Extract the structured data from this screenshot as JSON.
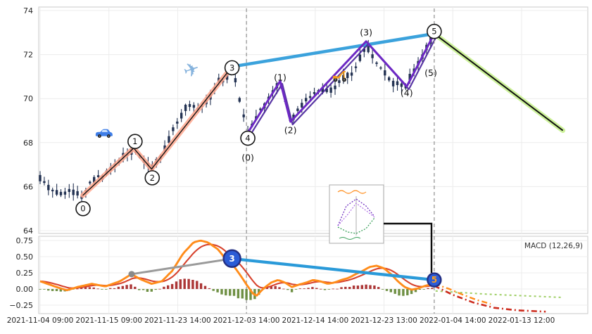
{
  "colors": {
    "candle": "#243353",
    "impulse": "#ffa78e",
    "trend_blue": "#2a9ad9",
    "subwave_purple": "#6d28c4",
    "subwave_purple2": "#47209a",
    "forecast_green": "#cdf29a",
    "macd_line": "#ff8c1a",
    "signal_line": "#d7432e",
    "hist_pos": "#a32020",
    "hist_neg": "#5f8430",
    "marker_blue": "#2b5cd6",
    "gray_line": "#9a9a9a",
    "projection_red": "#cc2b1d",
    "projection_green": "#9fcf66"
  },
  "chart_data": {
    "type": "candlestick",
    "description": "Price candlestick chart with Elliott wave annotations (top panel) and MACD indicator (bottom panel)",
    "x_tick_labels": [
      "2021-11-04 09:00",
      "2021-11-15 09:00",
      "2021-11-23 14:00",
      "2021-12-03 14:00",
      "2021-12-14 14:00",
      "2021-12-23 13:00",
      "2022-01-04 14:00",
      "2022-01-13 12:00"
    ],
    "price_axis": {
      "ticks": [
        74,
        72,
        70,
        68,
        66,
        64
      ],
      "range": [
        63.8,
        74.4
      ],
      "grid": true
    },
    "macd_axis": {
      "title": "MACD (12,26,9)",
      "ticks": [
        {
          "label": "0.75",
          "v": 0.75
        },
        {
          "label": "0.50",
          "v": 0.5
        },
        {
          "label": "0.25",
          "v": 0.25
        },
        {
          "label": "0.00",
          "v": 0
        },
        {
          "label": "−0.25",
          "v": -0.25
        }
      ],
      "range": [
        -0.38,
        0.82
      ]
    },
    "candles": {
      "count": 96,
      "t_step": 0.0604
    },
    "price_waypoints": [
      [
        0,
        66.35
      ],
      [
        0.12,
        65.95
      ],
      [
        0.3,
        65.7
      ],
      [
        0.45,
        65.85
      ],
      [
        0.62,
        65.55
      ],
      [
        0.75,
        66.3
      ],
      [
        0.9,
        66.45
      ],
      [
        1.05,
        66.8
      ],
      [
        1.2,
        67.3
      ],
      [
        1.36,
        67.75
      ],
      [
        1.5,
        67.2
      ],
      [
        1.62,
        66.8
      ],
      [
        1.8,
        67.6
      ],
      [
        2.0,
        69.0
      ],
      [
        2.15,
        69.7
      ],
      [
        2.3,
        69.5
      ],
      [
        2.45,
        70.0
      ],
      [
        2.6,
        70.9
      ],
      [
        2.7,
        70.8
      ],
      [
        2.79,
        71.45
      ],
      [
        2.88,
        70.2
      ],
      [
        3.02,
        68.5
      ],
      [
        3.15,
        69.2
      ],
      [
        3.3,
        69.9
      ],
      [
        3.49,
        70.8
      ],
      [
        3.58,
        69.6
      ],
      [
        3.64,
        69.0
      ],
      [
        3.8,
        69.7
      ],
      [
        3.95,
        70.1
      ],
      [
        4.1,
        70.4
      ],
      [
        4.25,
        70.3
      ],
      [
        4.4,
        70.9
      ],
      [
        4.55,
        71.2
      ],
      [
        4.74,
        72.4
      ],
      [
        4.85,
        71.8
      ],
      [
        5.0,
        71.2
      ],
      [
        5.15,
        70.7
      ],
      [
        5.33,
        70.6
      ],
      [
        5.45,
        71.4
      ],
      [
        5.6,
        72.2
      ],
      [
        5.73,
        73.0
      ]
    ],
    "macd_waypoints": [
      [
        0,
        0.12
      ],
      [
        0.24,
        0.03
      ],
      [
        0.39,
        -0.02
      ],
      [
        0.54,
        0.03
      ],
      [
        0.75,
        0.08
      ],
      [
        0.95,
        0.04
      ],
      [
        1.16,
        0.12
      ],
      [
        1.33,
        0.23
      ],
      [
        1.46,
        0.15
      ],
      [
        1.62,
        0.08
      ],
      [
        1.77,
        0.12
      ],
      [
        1.92,
        0.28
      ],
      [
        2.08,
        0.55
      ],
      [
        2.23,
        0.72
      ],
      [
        2.33,
        0.75
      ],
      [
        2.44,
        0.72
      ],
      [
        2.59,
        0.61
      ],
      [
        2.69,
        0.47
      ],
      [
        2.79,
        0.39
      ],
      [
        2.9,
        0.23
      ],
      [
        3.0,
        0.07
      ],
      [
        3.1,
        -0.08
      ],
      [
        3.15,
        -0.1
      ],
      [
        3.25,
        0.01
      ],
      [
        3.36,
        0.1
      ],
      [
        3.46,
        0.14
      ],
      [
        3.56,
        0.1
      ],
      [
        3.66,
        0.03
      ],
      [
        3.77,
        0.07
      ],
      [
        3.87,
        0.1
      ],
      [
        3.97,
        0.14
      ],
      [
        4.07,
        0.12
      ],
      [
        4.18,
        0.08
      ],
      [
        4.28,
        0.1
      ],
      [
        4.38,
        0.14
      ],
      [
        4.48,
        0.17
      ],
      [
        4.59,
        0.23
      ],
      [
        4.69,
        0.28
      ],
      [
        4.79,
        0.34
      ],
      [
        4.89,
        0.36
      ],
      [
        5.0,
        0.32
      ],
      [
        5.1,
        0.23
      ],
      [
        5.2,
        0.12
      ],
      [
        5.3,
        0.03
      ],
      [
        5.4,
        -0.01
      ],
      [
        5.5,
        0.01
      ],
      [
        5.6,
        0.05
      ],
      [
        5.73,
        0.08
      ]
    ],
    "elliott": {
      "impulse_polyline": [
        [
          0.62,
          65.6
        ],
        [
          1.36,
          67.75
        ],
        [
          1.62,
          66.8
        ],
        [
          2.79,
          71.45
        ]
      ],
      "blue_trend_price": [
        [
          2.79,
          71.45
        ],
        [
          5.73,
          72.95
        ]
      ],
      "subwave_polyline": [
        [
          3.02,
          68.45
        ],
        [
          3.49,
          70.8
        ],
        [
          3.64,
          68.95
        ],
        [
          4.74,
          72.6
        ],
        [
          5.33,
          70.55
        ],
        [
          5.73,
          72.95
        ]
      ],
      "forecast_price": [
        [
          5.73,
          72.95
        ],
        [
          7.6,
          68.55
        ]
      ],
      "wave_markers": [
        {
          "label": "0",
          "t": 0.624,
          "price": 65.0
        },
        {
          "label": "1",
          "t": 1.38,
          "price": 68.05
        },
        {
          "label": "2",
          "t": 1.63,
          "price": 66.4
        },
        {
          "label": "3",
          "t": 2.79,
          "price": 71.4
        },
        {
          "label": "4",
          "t": 3.02,
          "price": 68.2
        },
        {
          "label": "5",
          "t": 5.73,
          "price": 73.05
        }
      ],
      "subwave_labels": [
        {
          "label": "(0)",
          "t": 3.02,
          "price": 67.3
        },
        {
          "label": "(1)",
          "t": 3.49,
          "price": 70.95
        },
        {
          "label": "(2)",
          "t": 3.64,
          "price": 68.55
        },
        {
          "label": "(3)",
          "t": 4.74,
          "price": 73.0
        },
        {
          "label": "(4)",
          "t": 5.33,
          "price": 70.25
        },
        {
          "label": "(5)",
          "t": 5.68,
          "price": 71.15
        }
      ],
      "macd_markers": [
        {
          "label": "3",
          "t": 2.79,
          "value": 0.47,
          "r": 12
        },
        {
          "label": "5",
          "t": 5.73,
          "value": 0.14,
          "r": 9.5
        }
      ],
      "macd_blue_trend": [
        [
          2.79,
          0.47
        ],
        [
          5.73,
          0.14
        ]
      ],
      "macd_gray_line": [
        [
          1.33,
          0.23
        ],
        [
          2.79,
          0.47
        ]
      ]
    },
    "macd_projections": {
      "red": [
        [
          5.73,
          0.05
        ],
        [
          6.0,
          -0.09
        ],
        [
          6.3,
          -0.21
        ],
        [
          6.6,
          -0.29
        ],
        [
          6.95,
          -0.33
        ],
        [
          7.35,
          -0.35
        ]
      ],
      "orange": [
        [
          5.73,
          0.08
        ],
        [
          5.95,
          0.0
        ],
        [
          6.15,
          -0.09
        ],
        [
          6.35,
          -0.17
        ],
        [
          6.55,
          -0.23
        ]
      ],
      "green": [
        [
          5.75,
          -0.03
        ],
        [
          6.5,
          -0.08
        ],
        [
          7.6,
          -0.13
        ]
      ]
    },
    "dashed_vlines_t": [
      3.0,
      5.73
    ],
    "icons": [
      {
        "name": "car-icon",
        "t": 0.93,
        "price": 68.4
      },
      {
        "name": "airplane-icon",
        "t": 2.2,
        "price": 71.3,
        "glyph": "✈"
      },
      {
        "name": "scooter-icon",
        "t": 4.36,
        "price": 71.05
      }
    ]
  }
}
